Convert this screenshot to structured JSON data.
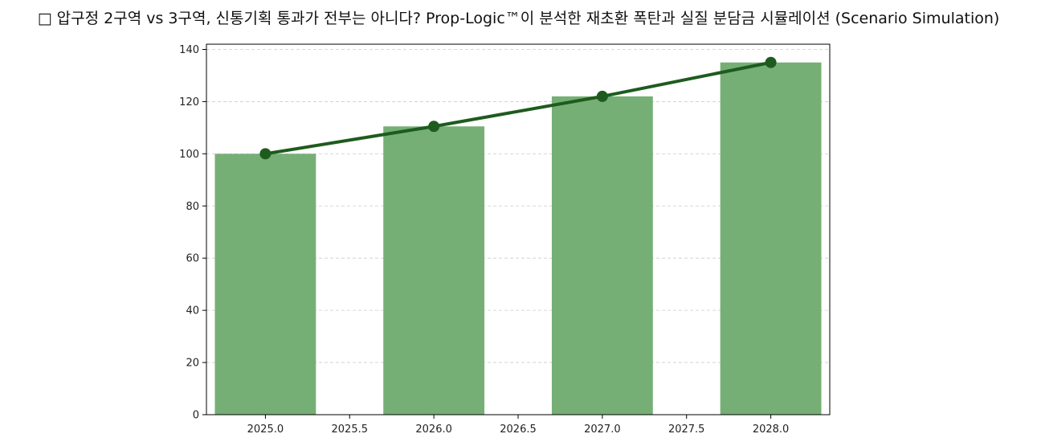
{
  "chart_data": {
    "type": "bar",
    "title": "□ 압구정 2구역 vs 3구역, 신통기획 통과가 전부는 아니다? Prop-Logic™이 분석한 재초환 폭탄과 실질 분담금 시뮬레이션 (Scenario Simulation)",
    "xlabel": "",
    "ylabel": "",
    "x": [
      2025,
      2026,
      2027,
      2028
    ],
    "series": [
      {
        "kind": "bar",
        "values": [
          100,
          110.5,
          122,
          135
        ],
        "color": "#75af75"
      },
      {
        "kind": "line",
        "values": [
          100,
          110.5,
          122,
          135
        ],
        "color": "#1e5b1e",
        "marker": "circle"
      }
    ],
    "xlim": [
      2024.65,
      2028.35
    ],
    "ylim": [
      0,
      142
    ],
    "xticks": [
      "2025.0",
      "2025.5",
      "2026.0",
      "2026.5",
      "2027.0",
      "2027.5",
      "2028.0"
    ],
    "yticks": [
      "0",
      "20",
      "40",
      "60",
      "80",
      "100",
      "120",
      "140"
    ],
    "grid": "y-dashed",
    "legend": "none"
  }
}
